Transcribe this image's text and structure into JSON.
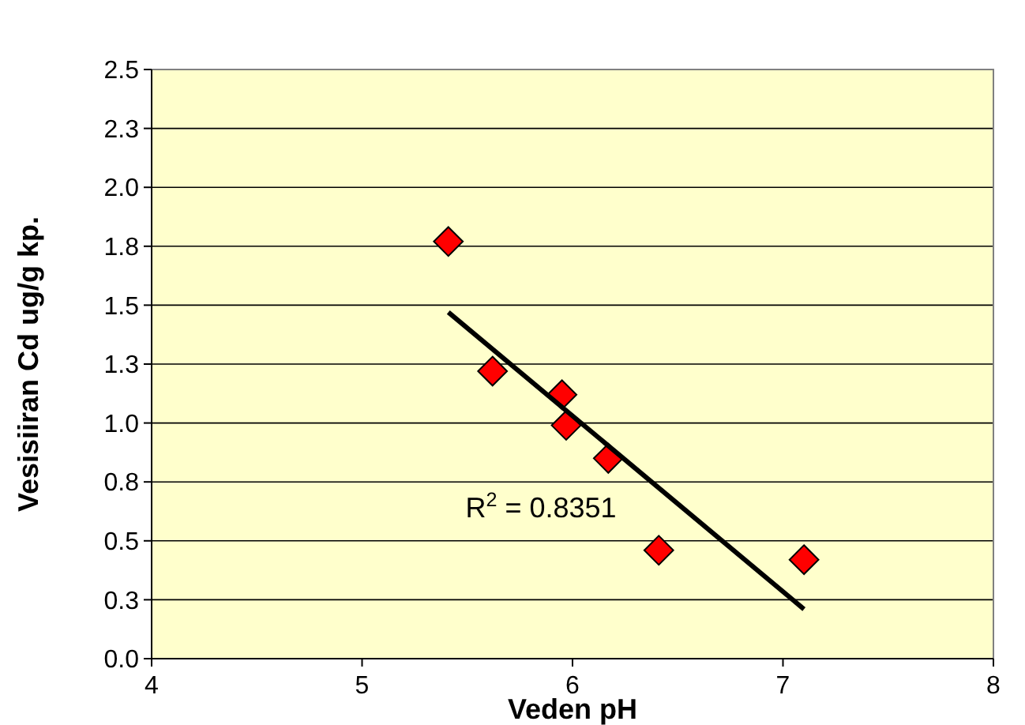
{
  "chart_data": {
    "type": "scatter",
    "xlabel": "Veden pH",
    "ylabel": "Vesisiiran Cd ug/g kp.",
    "xlim": [
      4,
      8
    ],
    "xticks": [
      4,
      5,
      6,
      7,
      8
    ],
    "ylim": [
      0,
      2.5
    ],
    "yticks": [
      {
        "value": 0,
        "label": "0.0"
      },
      {
        "value": 0.25,
        "label": "0.3"
      },
      {
        "value": 0.5,
        "label": "0.5"
      },
      {
        "value": 0.75,
        "label": "0.8"
      },
      {
        "value": 1,
        "label": "1.0"
      },
      {
        "value": 1.25,
        "label": "1.3"
      },
      {
        "value": 1.5,
        "label": "1.5"
      },
      {
        "value": 1.75,
        "label": "1.8"
      },
      {
        "value": 2,
        "label": "2.0"
      },
      {
        "value": 2.25,
        "label": "2.3"
      },
      {
        "value": 2.5,
        "label": "2.5"
      }
    ],
    "grid": "y",
    "marker": "diamond",
    "series": [
      {
        "color": "#ff0000",
        "x": [
          5.41,
          5.62,
          5.95,
          5.97,
          6.17,
          6.41,
          7.1
        ],
        "values": [
          1.77,
          1.22,
          1.12,
          0.99,
          0.85,
          0.46,
          0.42
        ]
      },
      {
        "type": "line",
        "color": "#000000",
        "marker": "none",
        "line_style": "solid",
        "x": [
          5.41,
          7.1
        ],
        "values": [
          1.47,
          0.21
        ]
      }
    ],
    "annotations": [
      "R$^{2}$ = 0.8351"
    ]
  }
}
